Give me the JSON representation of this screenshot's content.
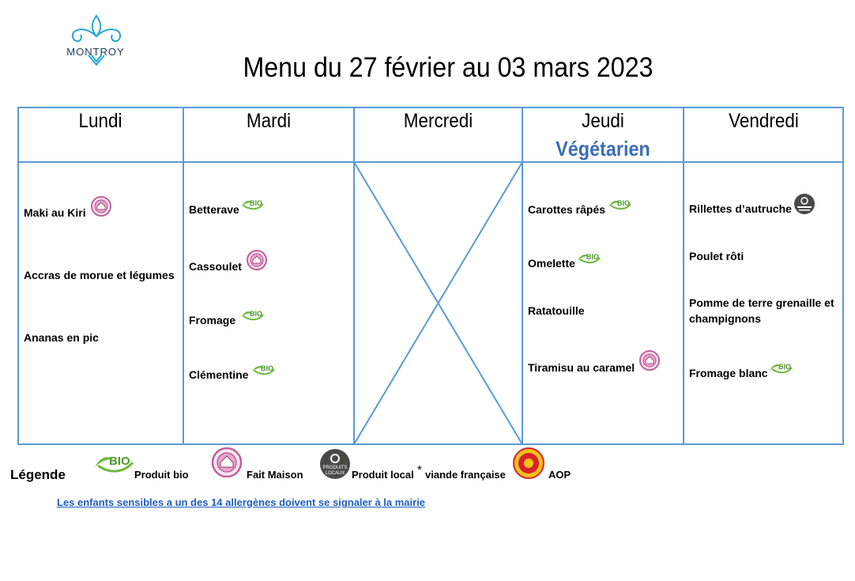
{
  "header": {
    "logo_text": "MONTROY",
    "title": "Menu du 27 février au 03 mars 2023"
  },
  "days": {
    "lundi": {
      "label": "Lundi",
      "items": [
        "Maki au Kiri",
        "Accras de morue et légumes",
        "Ananas en pic"
      ]
    },
    "mardi": {
      "label": "Mardi",
      "items": [
        "Betterave",
        "Cassoulet",
        "Fromage",
        "Clémentine"
      ]
    },
    "mercredi": {
      "label": "Mercredi"
    },
    "jeudi": {
      "label": "Jeudi",
      "sublabel": "Végétarien",
      "items": [
        "Carottes râpés",
        "Omelette",
        "Ratatouille",
        "Tiramisu au caramel"
      ]
    },
    "vendredi": {
      "label": "Vendredi",
      "items": [
        "Rillettes d’autruche",
        "Poulet rôti",
        "Pomme de terre grenaille et champignons",
        "Fromage blanc"
      ]
    }
  },
  "legend": {
    "title": "Légende",
    "bio": "Produit bio",
    "maison": "Fait Maison",
    "local": "Produit local",
    "asterisk": "*",
    "viande": "viande française",
    "aop": "AOP",
    "bio_badge": "BIO",
    "local_badge_line1": "PRODUITS",
    "local_badge_line2": "LOCAUX"
  },
  "note": "Les enfants sensibles a un des 14 allergènes doivent se signaler à la mairie",
  "colors": {
    "grid": "#5b9bd5",
    "vegetarien": "#3b6db4",
    "bio_green": "#6fb83f",
    "maison_pink": "#c0609c",
    "local_dark": "#4a4a44",
    "aop_red": "#d8232a",
    "aop_yellow": "#f2c318",
    "note_blue": "#1f5fbf"
  },
  "icons": [
    "fleur-de-lis-logo",
    "bio-icon",
    "fait-maison-icon",
    "produit-local-icon",
    "aop-icon"
  ]
}
